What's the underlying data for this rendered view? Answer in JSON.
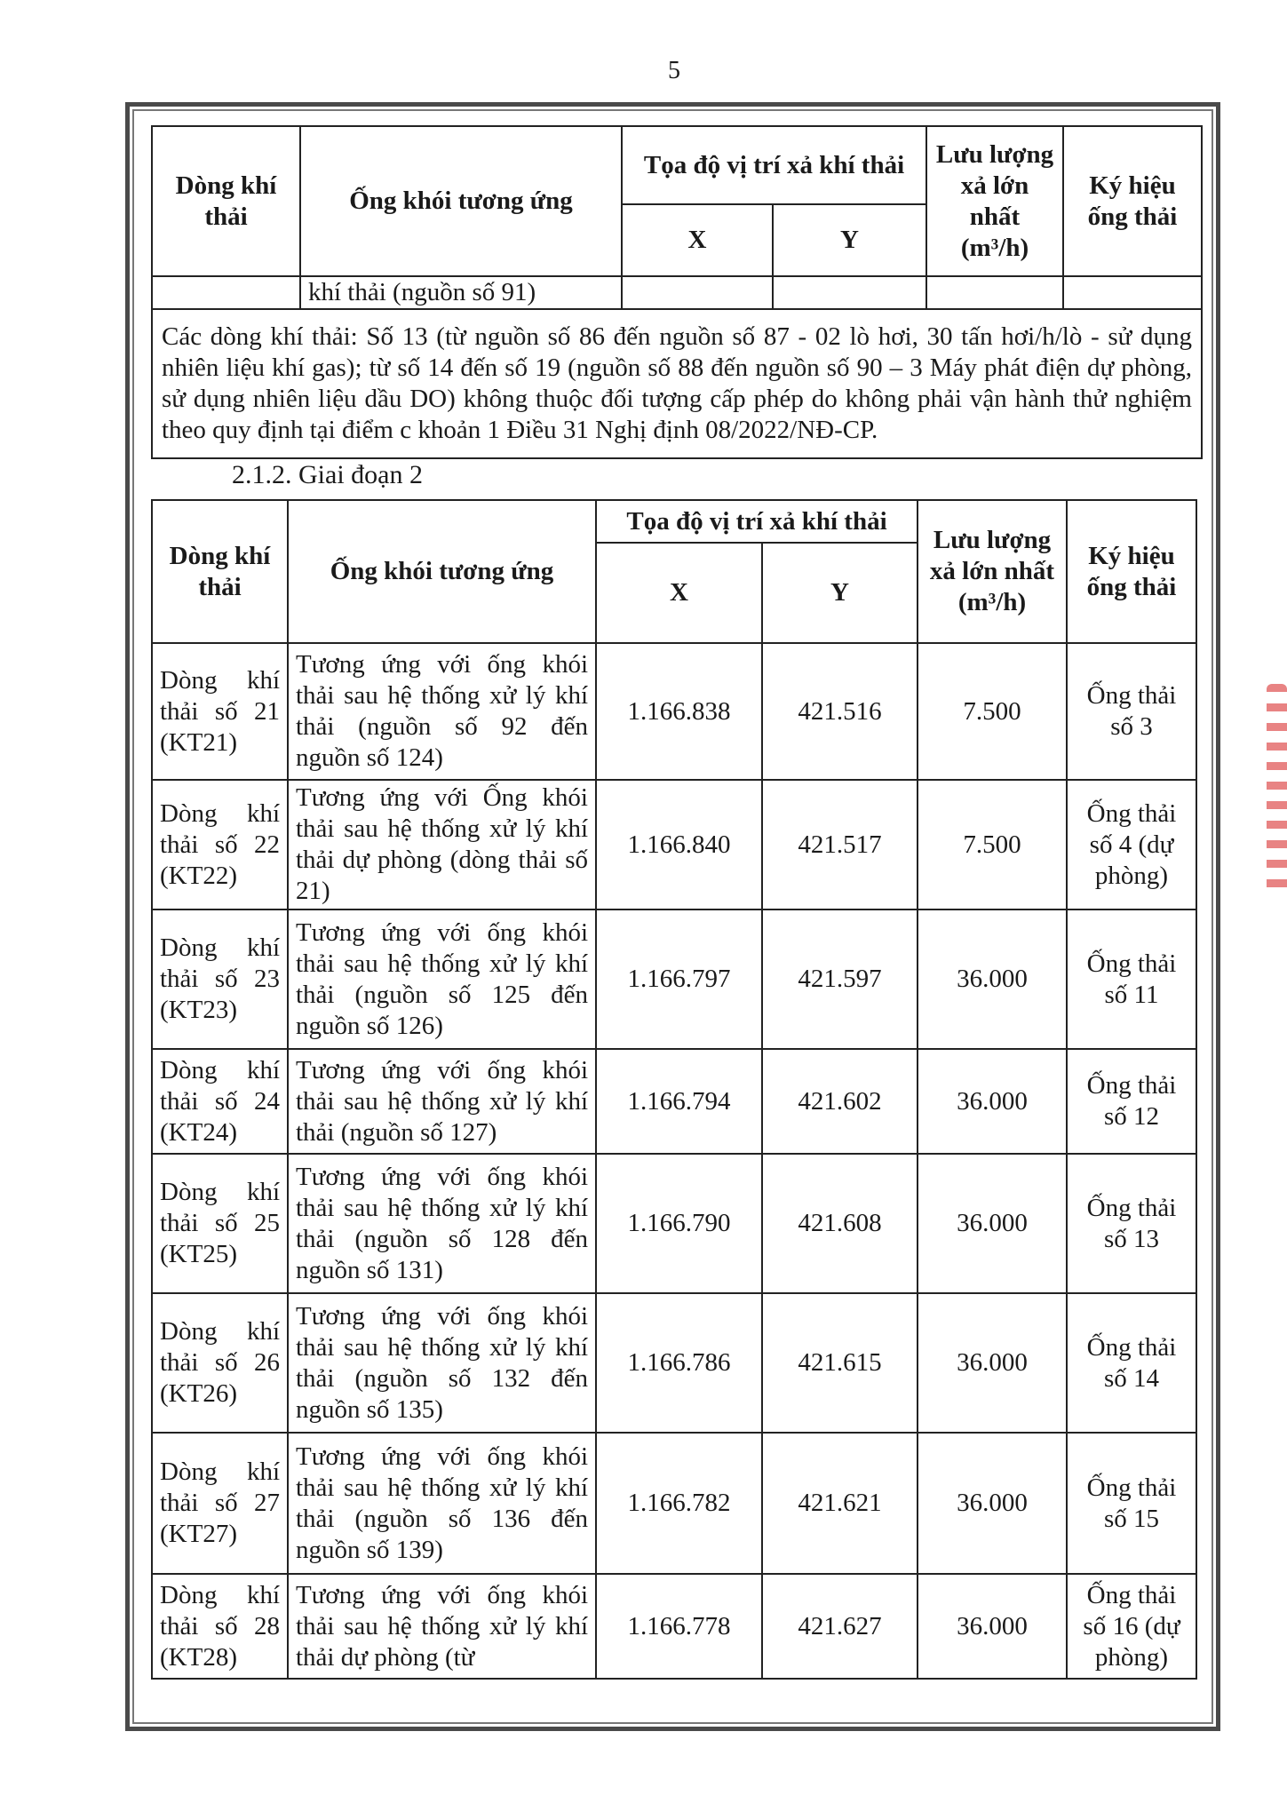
{
  "page_number": "5",
  "headers": {
    "stream": "Dòng khí thải",
    "stack": "Ống khói tương ứng",
    "coords": "Tọa độ vị trí xả khí thải",
    "x": "X",
    "y": "Y",
    "flow": "Lưu lượng xả lớn nhất (m³/h)",
    "symbol": "Ký hiệu ống thải"
  },
  "table1": {
    "continuation_row": "khí thải (nguồn số 91)",
    "note": "Các dòng khí thải: Số 13 (từ nguồn số 86 đến nguồn số 87 - 02 lò hơi, 30 tấn hơi/h/lò - sử dụng nhiên liệu khí gas); từ số 14 đến số 19 (nguồn số 88 đến nguồn số 90 – 3 Máy phát điện dự phòng, sử dụng nhiên liệu dầu DO) không thuộc đối tượng cấp phép do không phải vận hành thử nghiệm theo quy định tại điểm c khoản 1 Điều 31 Nghị định 08/2022/NĐ-CP."
  },
  "section_heading": "2.1.2. Giai đoạn 2",
  "table2": {
    "rows": [
      {
        "stream": "Dòng khí thải số 21 (KT21)",
        "stack": "Tương ứng với ống khói thải sau hệ thống xử lý khí thải (nguồn số 92 đến nguồn số 124)",
        "x": "1.166.838",
        "y": "421.516",
        "flow": "7.500",
        "symbol": "Ống thải số 3"
      },
      {
        "stream": "Dòng khí thải số 22 (KT22)",
        "stack": "Tương ứng với Ống khói thải sau hệ thống xử lý khí thải dự phòng (dòng thải số 21)",
        "x": "1.166.840",
        "y": "421.517",
        "flow": "7.500",
        "symbol": "Ống thải số 4 (dự phòng)"
      },
      {
        "stream": "Dòng khí thải số 23 (KT23)",
        "stack": "Tương ứng với ống khói thải sau hệ thống xử lý khí thải (nguồn số 125 đến nguồn số 126)",
        "x": "1.166.797",
        "y": "421.597",
        "flow": "36.000",
        "symbol": "Ống thải số 11"
      },
      {
        "stream": "Dòng khí thải số 24 (KT24)",
        "stack": "Tương ứng với ống khói thải sau hệ thống xử lý khí thải (nguồn số 127)",
        "x": "1.166.794",
        "y": "421.602",
        "flow": "36.000",
        "symbol": "Ống thải số 12"
      },
      {
        "stream": "Dòng khí thải số 25 (KT25)",
        "stack": "Tương ứng với ống khói thải sau hệ thống xử lý khí thải (nguồn số 128 đến nguồn số 131)",
        "x": "1.166.790",
        "y": "421.608",
        "flow": "36.000",
        "symbol": "Ống thải số 13"
      },
      {
        "stream": "Dòng khí thải số 26 (KT26)",
        "stack": "Tương ứng với ống khói thải sau hệ thống xử lý khí thải (nguồn số 132 đến nguồn số 135)",
        "x": "1.166.786",
        "y": "421.615",
        "flow": "36.000",
        "symbol": "Ống thải số 14"
      },
      {
        "stream": "Dòng khí thải số 27 (KT27)",
        "stack": "Tương ứng với ống khói thải sau hệ thống xử lý khí thải (nguồn số 136 đến nguồn số 139)",
        "x": "1.166.782",
        "y": "421.621",
        "flow": "36.000",
        "symbol": "Ống thải số 15"
      },
      {
        "stream": "Dòng khí thải số 28 (KT28)",
        "stack": "Tương ứng với ống khói thải sau hệ thống xử lý khí thải dự phòng (từ",
        "x": "1.166.778",
        "y": "421.627",
        "flow": "36.000",
        "symbol": "Ống thải số 16 (dự phòng)"
      }
    ]
  }
}
